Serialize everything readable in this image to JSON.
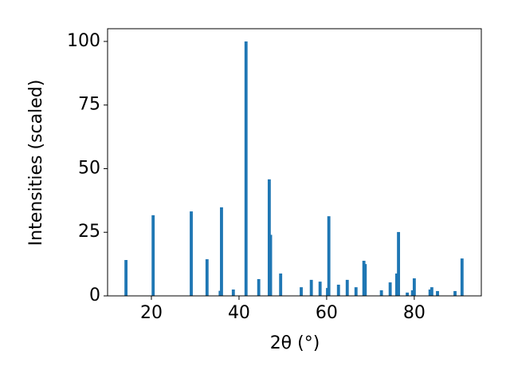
{
  "chart_data": {
    "type": "bar",
    "x_label": "2θ (°)",
    "y_label": "Intensities (scaled)",
    "x": [
      14.2,
      20.4,
      29.1,
      32.7,
      35.7,
      36.0,
      38.7,
      41.6,
      44.5,
      46.9,
      47.2,
      49.5,
      54.2,
      56.5,
      58.5,
      60.2,
      60.5,
      62.7,
      64.7,
      66.7,
      68.5,
      68.8,
      72.5,
      74.5,
      76.0,
      76.4,
      78.4,
      79.6,
      80.0,
      83.6,
      84.0,
      85.3,
      89.3,
      90.9
    ],
    "values": [
      14.1,
      31.7,
      33.2,
      14.4,
      2.0,
      34.8,
      2.5,
      100,
      6.6,
      45.8,
      24.0,
      8.8,
      3.4,
      6.3,
      5.6,
      3.1,
      31.3,
      4.4,
      6.3,
      3.4,
      13.8,
      12.5,
      2.2,
      5.3,
      8.8,
      25.1,
      1.3,
      2.2,
      6.9,
      2.5,
      3.4,
      1.9,
      1.9,
      14.7
    ],
    "color": "#1f77b4",
    "bar_width": 0.7,
    "xlim": [
      10,
      95.3
    ],
    "xticks": [
      20,
      40,
      60,
      80
    ],
    "ylim": [
      0,
      105
    ],
    "yticks": [
      0,
      25,
      50,
      75,
      100
    ]
  }
}
